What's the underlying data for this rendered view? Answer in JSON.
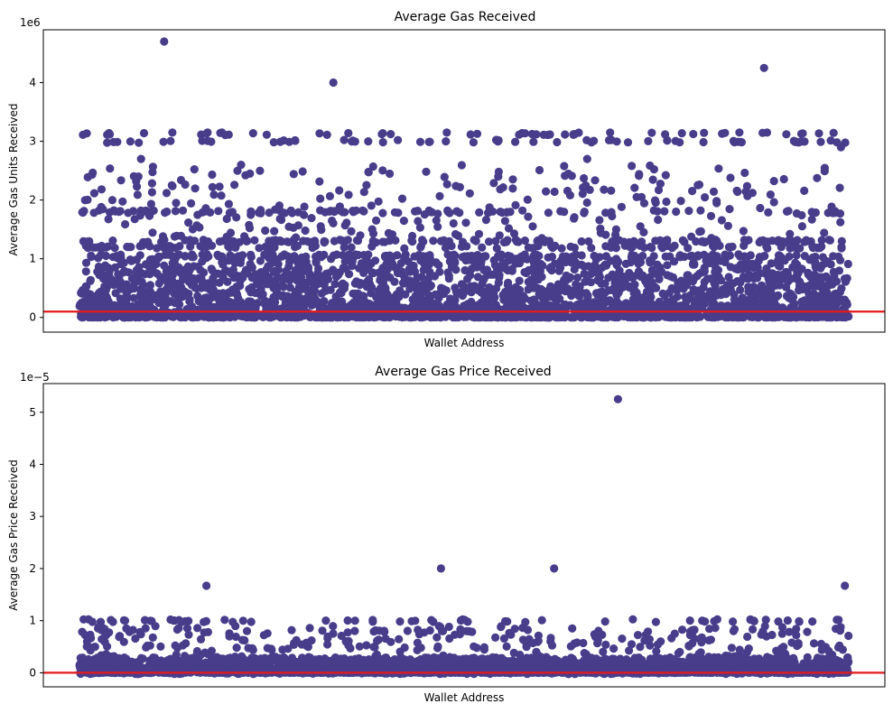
{
  "colors": {
    "marker": "#483d8b",
    "threshold_line": "#e31a1c",
    "axes": "#000000",
    "background": "#ffffff"
  },
  "chart_data": [
    {
      "type": "scatter",
      "title": "Average Gas Received",
      "xlabel": "Wallet Address",
      "ylabel": "Average Gas Units Received",
      "offset_label": "1e6",
      "yticks": [
        0,
        1,
        2,
        3,
        4
      ],
      "ylim": [
        -0.25,
        4.9
      ],
      "x_ticks_visible": false,
      "grid": false,
      "threshold": 0.1,
      "highlights": [
        {
          "x": 0.11,
          "y": 4.7
        },
        {
          "x": 0.33,
          "y": 4.0
        },
        {
          "x": 0.89,
          "y": 4.25
        },
        {
          "x": 0.12,
          "y": 2.25
        },
        {
          "x": 0.21,
          "y": 2.6
        },
        {
          "x": 0.66,
          "y": 2.7
        },
        {
          "x": 0.08,
          "y": 2.7
        },
        {
          "x": 0.99,
          "y": 2.9
        }
      ],
      "bands": [
        {
          "y": 3.13,
          "density": 0.3
        },
        {
          "y": 3.0,
          "density": 0.35
        },
        {
          "y": 1.8,
          "density": 0.45
        },
        {
          "y": 1.3,
          "density": 0.8
        },
        {
          "y": 1.2,
          "density": 0.6
        },
        {
          "y": 1.05,
          "density": 0.7
        }
      ],
      "dense_range": [
        0.0,
        1.05
      ],
      "scatter_range": [
        1.35,
        2.6
      ]
    },
    {
      "type": "scatter",
      "title": "Average Gas Price Received",
      "xlabel": "Wallet Address",
      "ylabel": "Average Gas Price Received",
      "offset_label": "1e−5",
      "yticks": [
        0,
        1,
        2,
        3,
        4,
        5
      ],
      "ylim": [
        -0.27,
        5.55
      ],
      "x_ticks_visible": false,
      "grid": false,
      "threshold": 0.0,
      "highlights": [
        {
          "x": 0.7,
          "y": 5.25
        },
        {
          "x": 0.47,
          "y": 2.0
        },
        {
          "x": 0.617,
          "y": 2.0
        },
        {
          "x": 0.165,
          "y": 1.67
        },
        {
          "x": 0.995,
          "y": 1.67
        }
      ],
      "bands": [
        {
          "y": 1.0,
          "density": 0.35
        },
        {
          "y": 0.5,
          "density": 0.12
        },
        {
          "y": 0.0,
          "density": 1.0
        }
      ],
      "dense_range": [
        0.0,
        0.3
      ],
      "scatter_range": [
        0.3,
        0.9
      ]
    }
  ]
}
